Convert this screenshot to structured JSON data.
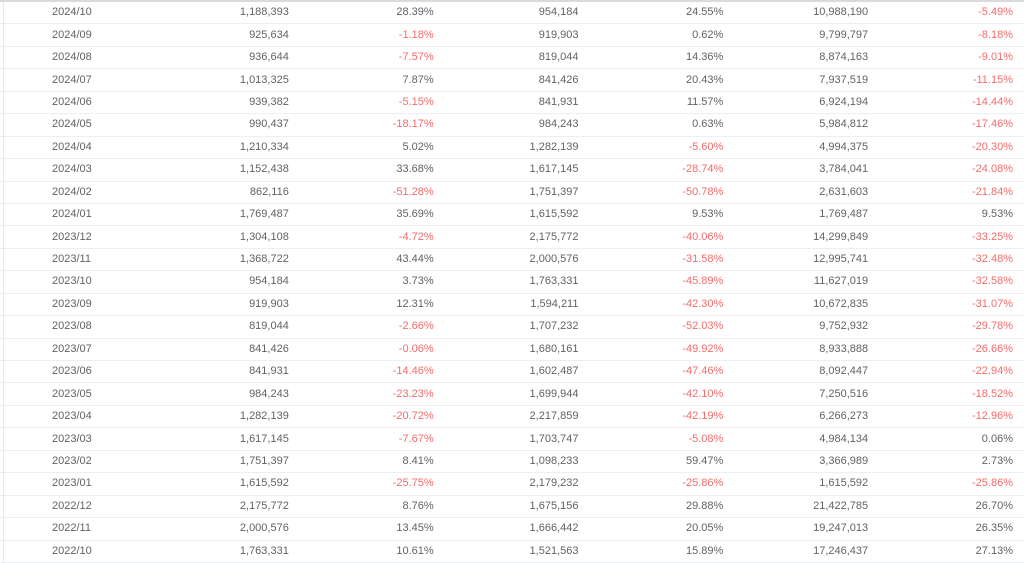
{
  "table": {
    "description": "Monthly data table, rows newest first; header row not visible (scrolled out of view)",
    "column_kinds": [
      "month",
      "value",
      "percent",
      "value",
      "percent",
      "value",
      "percent"
    ],
    "rows": [
      [
        "2024/10",
        "1,188,393",
        "28.39%",
        "954,184",
        "24.55%",
        "10,988,190",
        "-5.49%"
      ],
      [
        "2024/09",
        "925,634",
        "-1.18%",
        "919,903",
        "0.62%",
        "9,799,797",
        "-8.18%"
      ],
      [
        "2024/08",
        "936,644",
        "-7.57%",
        "819,044",
        "14.36%",
        "8,874,163",
        "-9.01%"
      ],
      [
        "2024/07",
        "1,013,325",
        "7.87%",
        "841,426",
        "20.43%",
        "7,937,519",
        "-11.15%"
      ],
      [
        "2024/06",
        "939,382",
        "-5.15%",
        "841,931",
        "11.57%",
        "6,924,194",
        "-14.44%"
      ],
      [
        "2024/05",
        "990,437",
        "-18.17%",
        "984,243",
        "0.63%",
        "5,984,812",
        "-17.46%"
      ],
      [
        "2024/04",
        "1,210,334",
        "5.02%",
        "1,282,139",
        "-5.60%",
        "4,994,375",
        "-20.30%"
      ],
      [
        "2024/03",
        "1,152,438",
        "33.68%",
        "1,617,145",
        "-28.74%",
        "3,784,041",
        "-24.08%"
      ],
      [
        "2024/02",
        "862,116",
        "-51.28%",
        "1,751,397",
        "-50.78%",
        "2,631,603",
        "-21.84%"
      ],
      [
        "2024/01",
        "1,769,487",
        "35.69%",
        "1,615,592",
        "9.53%",
        "1,769,487",
        "9.53%"
      ],
      [
        "2023/12",
        "1,304,108",
        "-4.72%",
        "2,175,772",
        "-40.06%",
        "14,299,849",
        "-33.25%"
      ],
      [
        "2023/11",
        "1,368,722",
        "43.44%",
        "2,000,576",
        "-31.58%",
        "12,995,741",
        "-32.48%"
      ],
      [
        "2023/10",
        "954,184",
        "3.73%",
        "1,763,331",
        "-45.89%",
        "11,627,019",
        "-32.58%"
      ],
      [
        "2023/09",
        "919,903",
        "12.31%",
        "1,594,211",
        "-42.30%",
        "10,672,835",
        "-31.07%"
      ],
      [
        "2023/08",
        "819,044",
        "-2.66%",
        "1,707,232",
        "-52.03%",
        "9,752,932",
        "-29.78%"
      ],
      [
        "2023/07",
        "841,426",
        "-0.06%",
        "1,680,161",
        "-49.92%",
        "8,933,888",
        "-26.66%"
      ],
      [
        "2023/06",
        "841,931",
        "-14.46%",
        "1,602,487",
        "-47.46%",
        "8,092,447",
        "-22.94%"
      ],
      [
        "2023/05",
        "984,243",
        "-23.23%",
        "1,699,944",
        "-42.10%",
        "7,250,516",
        "-18.52%"
      ],
      [
        "2023/04",
        "1,282,139",
        "-20.72%",
        "2,217,859",
        "-42.19%",
        "6,266,273",
        "-12.96%"
      ],
      [
        "2023/03",
        "1,617,145",
        "-7.67%",
        "1,703,747",
        "-5.08%",
        "4,984,134",
        "0.06%"
      ],
      [
        "2023/02",
        "1,751,397",
        "8.41%",
        "1,098,233",
        "59.47%",
        "3,366,989",
        "2.73%"
      ],
      [
        "2023/01",
        "1,615,592",
        "-25.75%",
        "2,179,232",
        "-25.86%",
        "1,615,592",
        "-25.86%"
      ],
      [
        "2022/12",
        "2,175,772",
        "8.76%",
        "1,675,156",
        "29.88%",
        "21,422,785",
        "26.70%"
      ],
      [
        "2022/11",
        "2,000,576",
        "13.45%",
        "1,666,442",
        "20.05%",
        "19,247,013",
        "26.35%"
      ],
      [
        "2022/10",
        "1,763,331",
        "10.61%",
        "1,521,563",
        "15.89%",
        "17,246,437",
        "27.13%"
      ]
    ]
  },
  "colors": {
    "text": "#606266",
    "negative_value": "#f56c6c",
    "row_border": "#ebeef5",
    "top_border": "#d8dade",
    "left_divider": "#e7e9ee",
    "background": "#ffffff"
  }
}
